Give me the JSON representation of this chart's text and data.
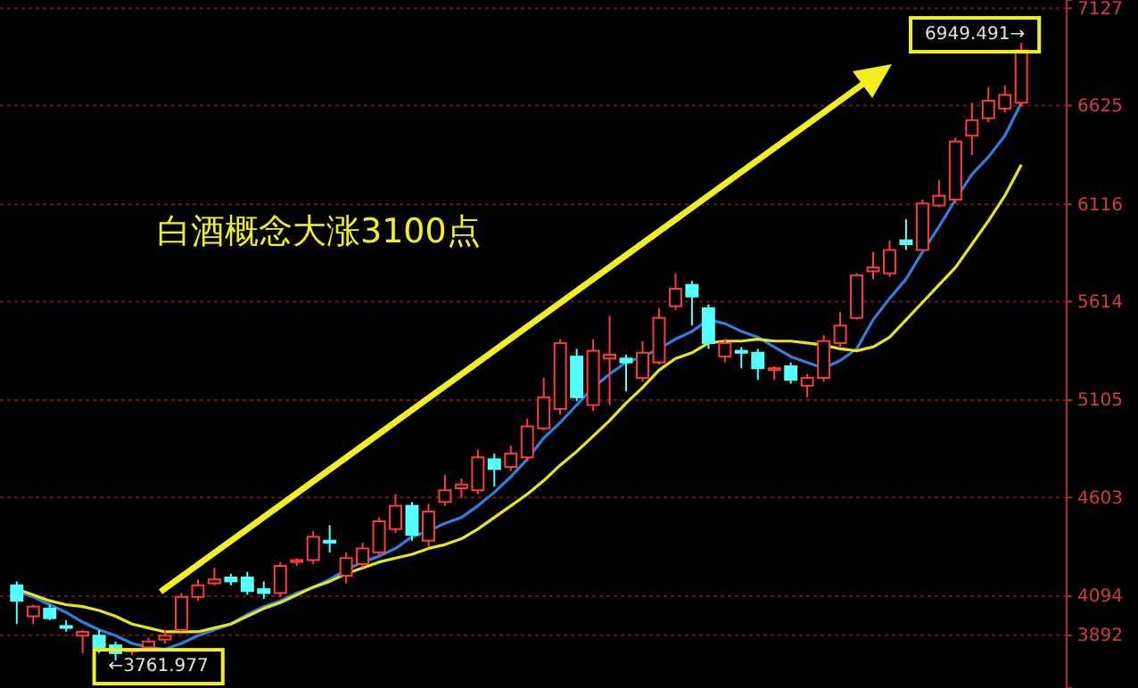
{
  "chart_data": {
    "type": "candlestick",
    "categories": [
      null,
      null,
      null,
      null,
      null,
      null,
      null,
      null,
      null,
      null,
      null,
      null,
      null,
      null,
      null,
      null,
      null,
      null,
      null,
      null,
      null,
      null,
      null,
      null,
      null,
      null,
      null,
      null,
      null,
      null,
      null,
      null,
      null,
      null,
      null,
      null,
      null,
      null,
      null,
      null,
      null,
      null,
      null,
      null,
      null,
      null,
      null,
      null,
      null,
      null,
      null,
      null,
      null,
      null,
      null,
      null,
      null,
      null,
      null,
      null,
      null,
      null
    ],
    "ohlc": [
      [
        4150,
        4170,
        3950,
        4070
      ],
      [
        3990,
        4050,
        3950,
        4040
      ],
      [
        4030,
        4050,
        3970,
        3980
      ],
      [
        3940,
        3970,
        3910,
        3930
      ],
      [
        3890,
        3920,
        3800,
        3910
      ],
      [
        3890,
        3920,
        3800,
        3830
      ],
      [
        3840,
        3860,
        3762,
        3800
      ],
      [
        3810,
        3820,
        3790,
        3820
      ],
      [
        3830,
        3880,
        3820,
        3860
      ],
      [
        3870,
        3920,
        3850,
        3890
      ],
      [
        3920,
        4110,
        3910,
        4090
      ],
      [
        4090,
        4180,
        4070,
        4150
      ],
      [
        4160,
        4240,
        4150,
        4180
      ],
      [
        4190,
        4210,
        4150,
        4170
      ],
      [
        4190,
        4220,
        4100,
        4120
      ],
      [
        4130,
        4170,
        4080,
        4110
      ],
      [
        4110,
        4270,
        4090,
        4250
      ],
      [
        4270,
        4290,
        4250,
        4280
      ],
      [
        4280,
        4430,
        4260,
        4400
      ],
      [
        4380,
        4460,
        4320,
        4370
      ],
      [
        4200,
        4320,
        4160,
        4290
      ],
      [
        4260,
        4370,
        4240,
        4340
      ],
      [
        4320,
        4500,
        4300,
        4480
      ],
      [
        4440,
        4620,
        4420,
        4560
      ],
      [
        4560,
        4580,
        4380,
        4410
      ],
      [
        4380,
        4570,
        4350,
        4530
      ],
      [
        4580,
        4720,
        4560,
        4640
      ],
      [
        4650,
        4700,
        4600,
        4670
      ],
      [
        4640,
        4850,
        4620,
        4810
      ],
      [
        4800,
        4830,
        4660,
        4750
      ],
      [
        4760,
        4870,
        4740,
        4830
      ],
      [
        4810,
        5010,
        4790,
        4970
      ],
      [
        4960,
        5220,
        4950,
        5120
      ],
      [
        5060,
        5420,
        5030,
        5400
      ],
      [
        5330,
        5370,
        5100,
        5120
      ],
      [
        5080,
        5420,
        5050,
        5360
      ],
      [
        5320,
        5540,
        5080,
        5340
      ],
      [
        5320,
        5340,
        5150,
        5300
      ],
      [
        5220,
        5410,
        5200,
        5350
      ],
      [
        5300,
        5580,
        5290,
        5530
      ],
      [
        5590,
        5760,
        5570,
        5680
      ],
      [
        5700,
        5720,
        5490,
        5640
      ],
      [
        5580,
        5600,
        5370,
        5400
      ],
      [
        5330,
        5420,
        5300,
        5400
      ],
      [
        5360,
        5380,
        5270,
        5350
      ],
      [
        5350,
        5370,
        5210,
        5270
      ],
      [
        5260,
        5280,
        5210,
        5270
      ],
      [
        5280,
        5300,
        5190,
        5210
      ],
      [
        5180,
        5240,
        5120,
        5220
      ],
      [
        5220,
        5440,
        5200,
        5410
      ],
      [
        5400,
        5560,
        5380,
        5490
      ],
      [
        5530,
        5760,
        5520,
        5750
      ],
      [
        5770,
        5870,
        5730,
        5790
      ],
      [
        5760,
        5930,
        5740,
        5880
      ],
      [
        5930,
        6040,
        5880,
        5910
      ],
      [
        5880,
        6140,
        5870,
        6120
      ],
      [
        6110,
        6240,
        6100,
        6160
      ],
      [
        6140,
        6460,
        6120,
        6440
      ],
      [
        6470,
        6640,
        6370,
        6550
      ],
      [
        6560,
        6720,
        6540,
        6650
      ],
      [
        6610,
        6730,
        6590,
        6680
      ],
      [
        6640,
        6949,
        6620,
        6910
      ]
    ],
    "series": [
      {
        "type": "line",
        "color": "#2f7fe0",
        "values": [
          4120,
          4090,
          4050,
          4010,
          3960,
          3920,
          3890,
          3850,
          3830,
          3820,
          3850,
          3890,
          3920,
          3950,
          4000,
          4040,
          4070,
          4110,
          4140,
          4180,
          4230,
          4270,
          4300,
          4340,
          4400,
          4430,
          4470,
          4500,
          4560,
          4630,
          4710,
          4800,
          4910,
          4990,
          5080,
          5170,
          5240,
          5300,
          5330,
          5370,
          5420,
          5460,
          5520,
          5500,
          5460,
          5430,
          5380,
          5330,
          5300,
          5270,
          5310,
          5370,
          5520,
          5630,
          5730,
          5870,
          6000,
          6140,
          6270,
          6360,
          6470,
          6640
        ]
      },
      {
        "type": "line",
        "color": "#e6e619",
        "values": [
          4130,
          4100,
          4070,
          4050,
          4040,
          4020,
          3990,
          3950,
          3930,
          3910,
          3910,
          3910,
          3930,
          3950,
          3990,
          4030,
          4060,
          4100,
          4140,
          4170,
          4210,
          4240,
          4270,
          4290,
          4310,
          4340,
          4360,
          4390,
          4440,
          4500,
          4560,
          4620,
          4690,
          4770,
          4840,
          4920,
          5000,
          5090,
          5170,
          5260,
          5320,
          5350,
          5400,
          5410,
          5410,
          5420,
          5410,
          5410,
          5400,
          5390,
          5370,
          5360,
          5380,
          5430,
          5520,
          5610,
          5700,
          5790,
          5910,
          6030,
          6160,
          6320
        ]
      }
    ],
    "ylim": [
      3620,
      7170
    ],
    "yticks": [
      3892,
      4094,
      4603,
      5105,
      5614,
      6116,
      6625,
      7127
    ],
    "grid": "y",
    "tick_labels": "y",
    "annotations": [
      "白酒概念大涨3100点",
      "6949.491→",
      "←3761.977"
    ]
  }
}
